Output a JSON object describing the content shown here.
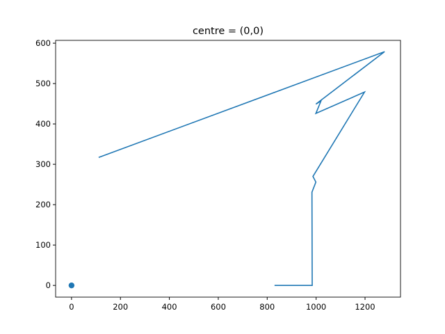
{
  "chart_data": {
    "type": "line",
    "title": "centre = (0,0)",
    "xlabel": "",
    "ylabel": "",
    "xlim": [
      -65,
      1345
    ],
    "ylim": [
      -29,
      607
    ],
    "xticks": [
      0,
      200,
      400,
      600,
      800,
      1000,
      1200
    ],
    "yticks": [
      0,
      100,
      200,
      300,
      400,
      500,
      600
    ],
    "grid": false,
    "color": "#1f77b4",
    "series": [
      {
        "x": [
          830,
          984,
          983,
          999,
          987,
          1198,
          999,
          1020,
          999,
          1280,
          111
        ],
        "y": [
          0,
          0,
          231,
          256,
          270,
          479,
          426,
          457,
          449,
          579,
          317
        ]
      }
    ],
    "points": [
      {
        "x": 0,
        "y": 0
      }
    ]
  }
}
